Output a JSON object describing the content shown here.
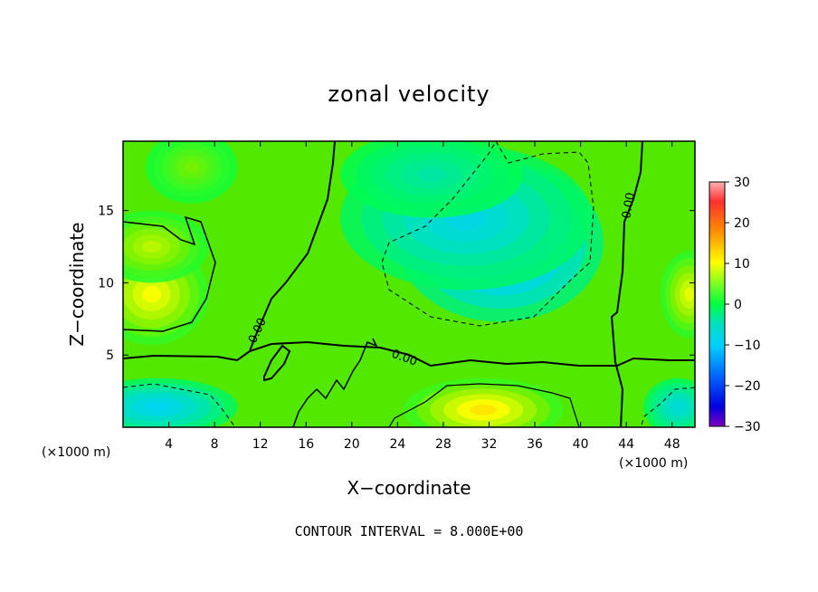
{
  "chart_data": {
    "type": "heatmap",
    "title": "zonal velocity",
    "xlabel": "X−coordinate",
    "ylabel": "Z−coordinate",
    "x_unit_left": "(×1000 m)",
    "x_unit_right": "(×1000 m)",
    "xlim": [
      0,
      50
    ],
    "ylim": [
      0,
      19.8
    ],
    "x_ticks": [
      4,
      8,
      12,
      16,
      20,
      24,
      28,
      32,
      36,
      40,
      44,
      48
    ],
    "y_ticks": [
      5,
      10,
      15
    ],
    "colorbar": {
      "ticks": [
        "30",
        "20",
        "10",
        "0",
        "−10",
        "−20",
        "−30"
      ],
      "range": [
        -30,
        30
      ]
    },
    "contour_label": "0.00",
    "contour_interval_text": "CONTOUR INTERVAL = 8.000E+00",
    "colors": {
      "background_field": "#52e800",
      "negative_max": "#0070e0",
      "positive_max": "#ff9000"
    },
    "anomalies": [
      {
        "x": 33,
        "z": 12.8,
        "value": -15,
        "rx": 9,
        "rz": 5.5
      },
      {
        "x": 30,
        "z": 14.5,
        "value": -8,
        "rx": 11,
        "rz": 5
      },
      {
        "x": 31.5,
        "z": 1.2,
        "value": 12,
        "rx": 7,
        "rz": 2.2
      },
      {
        "x": 2.5,
        "z": 9.2,
        "value": 10,
        "rx": 5,
        "rz": 3.5
      },
      {
        "x": 2.5,
        "z": 12.5,
        "value": 7,
        "rx": 5,
        "rz": 2.5
      },
      {
        "x": 49.5,
        "z": 9.2,
        "value": 9,
        "rx": 2.5,
        "rz": 3
      },
      {
        "x": 3,
        "z": 1.4,
        "value": -9,
        "rx": 7,
        "rz": 2
      },
      {
        "x": 48.5,
        "z": 1.4,
        "value": -7,
        "rx": 3,
        "rz": 2
      },
      {
        "x": 27,
        "z": 17.5,
        "value": -4,
        "rx": 8,
        "rz": 3
      },
      {
        "x": 6,
        "z": 18,
        "value": 4,
        "rx": 4,
        "rz": 2.5
      }
    ]
  }
}
